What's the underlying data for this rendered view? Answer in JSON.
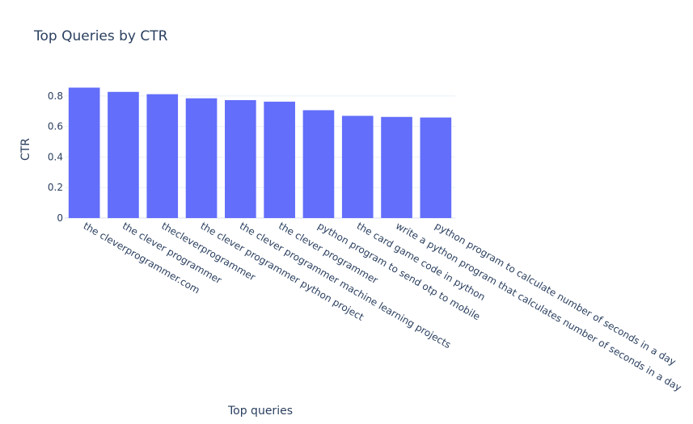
{
  "chart_data": {
    "type": "bar",
    "title": "Top Queries by CTR",
    "xlabel": "Top queries",
    "ylabel": "CTR",
    "categories": [
      "the cleverprogrammer.com",
      "the clever programmer",
      "thecleverprogrammer",
      "the clever programmer python project",
      "the clever programmer machine learning projects",
      "the clever programmer",
      "python program to send otp to mobile",
      "the card game code in python",
      "write a python program that calculates number of seconds in a day",
      "python program to calculate number of seconds in a day"
    ],
    "values": [
      0.855,
      0.827,
      0.812,
      0.785,
      0.773,
      0.763,
      0.707,
      0.67,
      0.663,
      0.659
    ],
    "ylim": [
      0,
      0.9
    ],
    "yticks": [
      0,
      0.2,
      0.4,
      0.6,
      0.8
    ],
    "ytick_labels": [
      "0",
      "0.2",
      "0.4",
      "0.6",
      "0.8"
    ],
    "grid": true,
    "bar_color": "#636efa"
  }
}
